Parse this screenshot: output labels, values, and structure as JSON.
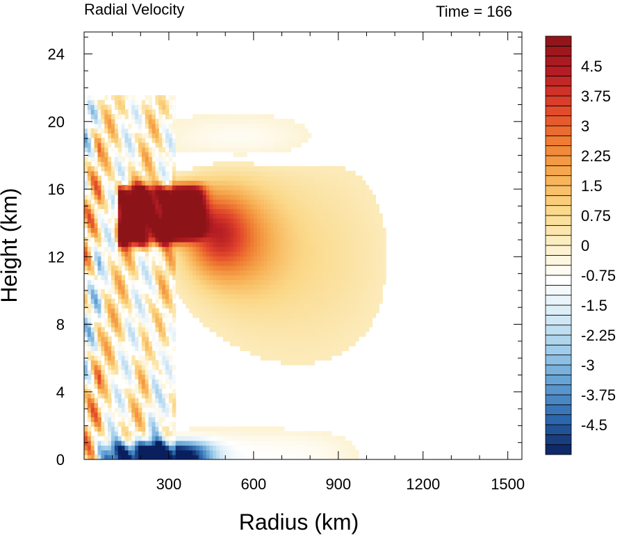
{
  "chart_data": {
    "type": "heatmap",
    "title_left": "Radial Velocity",
    "title_right": "Time = 166",
    "xlabel": "Radius (km)",
    "ylabel": "Height (km)",
    "xlim": [
      0,
      1550
    ],
    "ylim": [
      0,
      25.3
    ],
    "xticks": [
      300,
      600,
      900,
      1200,
      1500
    ],
    "yticks": [
      0,
      4,
      8,
      12,
      16,
      20,
      24
    ],
    "x_minor_step": 100,
    "y_minor_step": 1,
    "colorbar": {
      "levels": [
        -5.25,
        -5,
        -4.75,
        -4.5,
        -4.25,
        -4,
        -3.75,
        -3.5,
        -3.25,
        -3,
        -2.75,
        -2.5,
        -2.25,
        -2,
        -1.75,
        -1.5,
        -1.25,
        -1,
        -0.75,
        -0.5,
        -0.25,
        0,
        0.25,
        0.5,
        0.75,
        1,
        1.25,
        1.5,
        1.75,
        2,
        2.25,
        2.5,
        2.75,
        3,
        3.25,
        3.5,
        3.75,
        4,
        4.25,
        4.5,
        4.75,
        5,
        5.25
      ],
      "labels": [
        "4.5",
        "3.75",
        "3",
        "2.25",
        "1.5",
        "0.75",
        "0",
        "-0.75",
        "-1.5",
        "-2.25",
        "-3",
        "-3.75",
        "-4.5"
      ],
      "colors": [
        "#0a1f5e",
        "#2c67ad",
        "#5e9dd1",
        "#9fccea",
        "#d7ebf6",
        "#ffffff",
        "#fcf0c9",
        "#fbd98a",
        "#f7ae52",
        "#ef7c32",
        "#e0432b",
        "#b51c24",
        "#8c1418"
      ]
    },
    "features": [
      {
        "name": "outflow core",
        "r_range": [
          120,
          410
        ],
        "z_range": [
          12.9,
          16.2
        ],
        "value": 5.0
      },
      {
        "name": "outflow plume",
        "r_range": [
          380,
          650
        ],
        "z_range": [
          10,
          17.5
        ],
        "value": 2.4
      },
      {
        "name": "upper outflow haze",
        "r_range": [
          450,
          1100
        ],
        "z_range": [
          5,
          18
        ],
        "value": 0.7
      },
      {
        "name": "boundary layer inflow",
        "r_range": [
          80,
          780
        ],
        "z_range": [
          0,
          1.2
        ],
        "value": -5.0
      },
      {
        "name": "upper inflow",
        "r_range": [
          300,
          900
        ],
        "z_range": [
          17,
          21
        ],
        "value": -0.8
      }
    ]
  }
}
